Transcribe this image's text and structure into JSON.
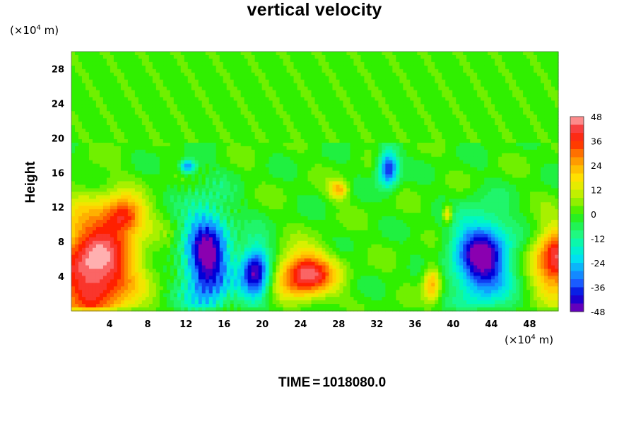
{
  "title": "vertical velocity",
  "y_axis": {
    "label": "Height",
    "unit": {
      "prefix": "(×10",
      "exponent": "4",
      "suffix": " m)"
    }
  },
  "x_axis": {
    "unit": {
      "prefix": "(×10",
      "exponent": "4",
      "suffix": " m)"
    }
  },
  "footer": {
    "label": "TIME",
    "equals": "=",
    "value": "1018080.0"
  },
  "colorbar": {
    "ticks": [
      "48",
      "36",
      "24",
      "12",
      "0",
      "-12",
      "-24",
      "-36",
      "-48"
    ],
    "range": [
      -48,
      48
    ],
    "stops": [
      {
        "v": -48,
        "c": "#8a00b0"
      },
      {
        "v": -44,
        "c": "#3a00c8"
      },
      {
        "v": -40,
        "c": "#0000d8"
      },
      {
        "v": -34,
        "c": "#1a5cff"
      },
      {
        "v": -28,
        "c": "#10a0ff"
      },
      {
        "v": -22,
        "c": "#00e0f0"
      },
      {
        "v": -16,
        "c": "#00f8c0"
      },
      {
        "v": -10,
        "c": "#20f880"
      },
      {
        "v": -4,
        "c": "#20f040"
      },
      {
        "v": 0,
        "c": "#30f000"
      },
      {
        "v": 6,
        "c": "#90f000"
      },
      {
        "v": 12,
        "c": "#d8f000"
      },
      {
        "v": 18,
        "c": "#ffe000"
      },
      {
        "v": 24,
        "c": "#ffb000"
      },
      {
        "v": 30,
        "c": "#ff7000"
      },
      {
        "v": 36,
        "c": "#ff2000"
      },
      {
        "v": 42,
        "c": "#f84040"
      },
      {
        "v": 48,
        "c": "#ffb0b0"
      }
    ]
  },
  "chart_data": {
    "type": "heatmap",
    "title": "vertical velocity",
    "xlabel": "(×10^4 m)",
    "ylabel": "Height (×10^4 m)",
    "x_ticks": [
      "4",
      "8",
      "12",
      "16",
      "20",
      "24",
      "28",
      "32",
      "36",
      "40",
      "44",
      "48"
    ],
    "y_ticks": [
      "4",
      "8",
      "12",
      "16",
      "20",
      "24",
      "28"
    ],
    "xlim": [
      0,
      51
    ],
    "ylim": [
      0,
      30
    ],
    "value_range": [
      -48,
      48
    ],
    "features": [
      {
        "kind": "updraft",
        "x": 2.5,
        "y": 5,
        "rx": 4,
        "ry": 6,
        "value": 50
      },
      {
        "kind": "downdraft",
        "x": 14.2,
        "y": 6,
        "rx": 2.2,
        "ry": 5.5,
        "value": -50
      },
      {
        "kind": "downdraft",
        "x": 19.3,
        "y": 4.5,
        "rx": 1.5,
        "ry": 3,
        "value": -48
      },
      {
        "kind": "updraft",
        "x": 24.5,
        "y": 4.2,
        "rx": 2.8,
        "ry": 2.5,
        "value": 46
      },
      {
        "kind": "downdraft",
        "x": 33.2,
        "y": 16.5,
        "rx": 1.0,
        "ry": 2,
        "value": -40
      },
      {
        "kind": "updraft",
        "x": 28.0,
        "y": 14.0,
        "rx": 0.9,
        "ry": 1.0,
        "value": 24
      },
      {
        "kind": "updraft",
        "x": 37.8,
        "y": 3.2,
        "rx": 0.9,
        "ry": 2,
        "value": 26
      },
      {
        "kind": "updraft",
        "x": 39.4,
        "y": 11.2,
        "rx": 0.5,
        "ry": 1.0,
        "value": 24
      },
      {
        "kind": "downdraft",
        "x": 43.0,
        "y": 6.0,
        "rx": 2.8,
        "ry": 4.5,
        "value": -50
      },
      {
        "kind": "updraft",
        "x": 50.8,
        "y": 5.8,
        "rx": 2.2,
        "ry": 3.5,
        "value": 44
      },
      {
        "kind": "downdraft",
        "x": 12.2,
        "y": 16.7,
        "rx": 0.8,
        "ry": 0.8,
        "value": -32
      },
      {
        "kind": "updraft",
        "x": 5.5,
        "y": 11,
        "rx": 2.0,
        "ry": 2.0,
        "value": 30
      }
    ]
  }
}
